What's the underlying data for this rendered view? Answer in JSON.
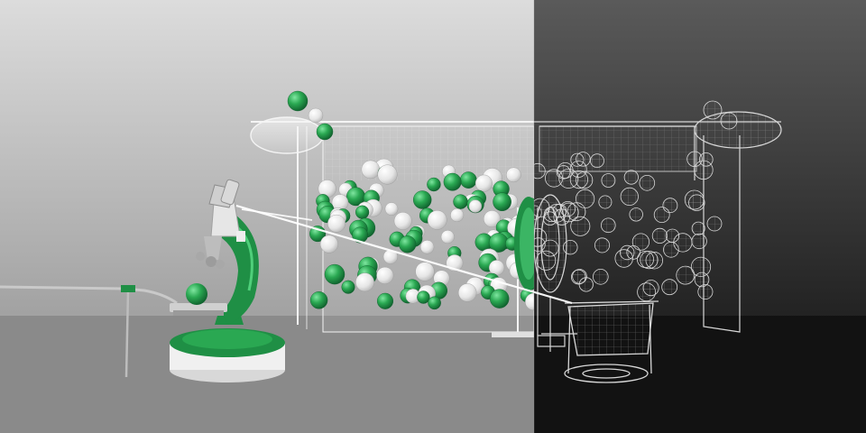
{
  "scene": {
    "left_panel": {
      "render_style": "shaded",
      "background_top": "#dcdcdc",
      "background_bottom": "#8c8c8c",
      "floor": "#8a8a8a"
    },
    "right_panel": {
      "render_style": "wireframe",
      "background_top": "#5a5a5a",
      "background_bottom": "#0e0e0e",
      "floor": "#121212"
    },
    "colors": {
      "accent_green": "#1f8f45",
      "accent_green_light": "#4fcf7a",
      "ball_white": "#f2f2f2",
      "glass": "#e8eef0",
      "wire": "#d8d8d8",
      "microscope_base": "#f0f0f0"
    },
    "objects": [
      "microscope",
      "glass-tank",
      "ball-cluster",
      "rotating-drum",
      "collection-basket",
      "metal-rod",
      "light-beam"
    ],
    "ball_cluster": {
      "count": 170,
      "green_share": 0.45
    }
  }
}
